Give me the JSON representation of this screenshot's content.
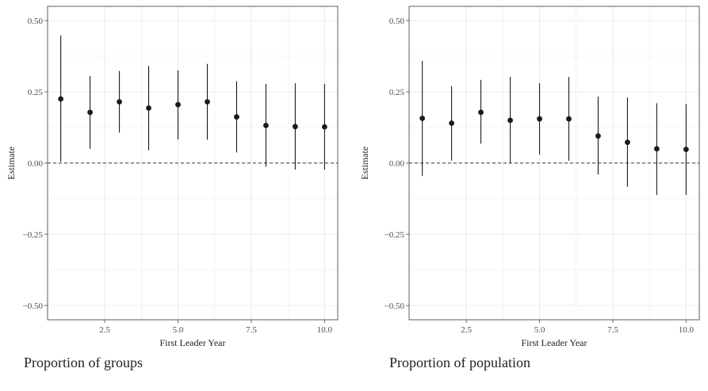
{
  "chart_data": [
    {
      "type": "scatter",
      "error_bars": true,
      "caption": "Proportion of groups",
      "xlabel": "First Leader Year",
      "ylabel": "Estimate",
      "xlim": [
        0.55,
        10.45
      ],
      "ylim": [
        -0.55,
        0.55
      ],
      "xticks": [
        "2.5",
        "5.0",
        "7.5",
        "10.0"
      ],
      "yticks": [
        "-0.50",
        "-0.25",
        "0.00",
        "0.25",
        "0.50"
      ],
      "reference_line": 0,
      "grid": true,
      "points": [
        {
          "x": 1,
          "y": 0.225,
          "lo": 0.005,
          "hi": 0.448
        },
        {
          "x": 2,
          "y": 0.178,
          "lo": 0.05,
          "hi": 0.305
        },
        {
          "x": 3,
          "y": 0.215,
          "lo": 0.107,
          "hi": 0.323
        },
        {
          "x": 4,
          "y": 0.193,
          "lo": 0.045,
          "hi": 0.341
        },
        {
          "x": 5,
          "y": 0.205,
          "lo": 0.083,
          "hi": 0.325
        },
        {
          "x": 6,
          "y": 0.215,
          "lo": 0.082,
          "hi": 0.348
        },
        {
          "x": 7,
          "y": 0.162,
          "lo": 0.037,
          "hi": 0.287
        },
        {
          "x": 8,
          "y": 0.132,
          "lo": -0.013,
          "hi": 0.278
        },
        {
          "x": 9,
          "y": 0.128,
          "lo": -0.023,
          "hi": 0.28
        },
        {
          "x": 10,
          "y": 0.127,
          "lo": -0.023,
          "hi": 0.278
        }
      ]
    },
    {
      "type": "scatter",
      "error_bars": true,
      "caption": "Proportion of population",
      "xlabel": "First Leader Year",
      "ylabel": "Estimate",
      "xlim": [
        0.55,
        10.45
      ],
      "ylim": [
        -0.55,
        0.55
      ],
      "xticks": [
        "2.5",
        "5.0",
        "7.5",
        "10.0"
      ],
      "yticks": [
        "-0.50",
        "-0.25",
        "0.00",
        "0.25",
        "0.50"
      ],
      "reference_line": 0,
      "grid": true,
      "points": [
        {
          "x": 1,
          "y": 0.157,
          "lo": -0.045,
          "hi": 0.358
        },
        {
          "x": 2,
          "y": 0.14,
          "lo": 0.008,
          "hi": 0.27
        },
        {
          "x": 3,
          "y": 0.178,
          "lo": 0.068,
          "hi": 0.292
        },
        {
          "x": 4,
          "y": 0.15,
          "lo": 0.0,
          "hi": 0.302
        },
        {
          "x": 5,
          "y": 0.155,
          "lo": 0.03,
          "hi": 0.28
        },
        {
          "x": 6,
          "y": 0.155,
          "lo": 0.008,
          "hi": 0.302
        },
        {
          "x": 7,
          "y": 0.095,
          "lo": -0.04,
          "hi": 0.233
        },
        {
          "x": 8,
          "y": 0.073,
          "lo": -0.083,
          "hi": 0.23
        },
        {
          "x": 9,
          "y": 0.05,
          "lo": -0.112,
          "hi": 0.21
        },
        {
          "x": 10,
          "y": 0.048,
          "lo": -0.112,
          "hi": 0.207
        }
      ]
    }
  ],
  "colors": {
    "point": "#1a1a1a",
    "grid": "#ebebeb",
    "frame": "#4d4d4d",
    "reference_line": "#333333"
  }
}
